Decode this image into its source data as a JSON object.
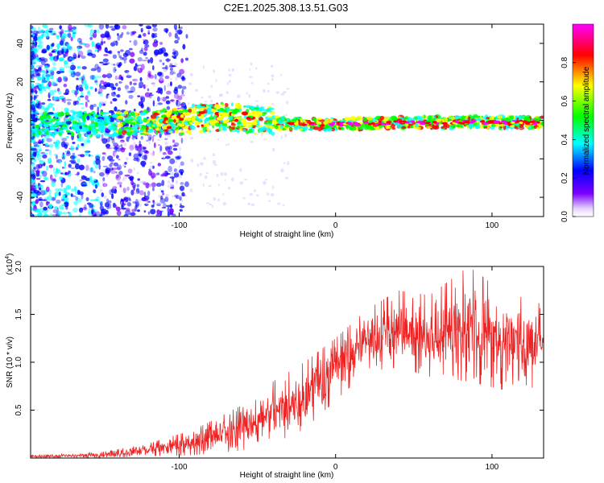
{
  "title": "C2E1.2025.308.13.51.G03",
  "chart_data": [
    {
      "type": "heatmap",
      "xlabel": "Height of straight line (km)",
      "ylabel": "Frequency (Hz)",
      "xlim": [
        -195,
        133
      ],
      "ylim": [
        -50,
        50
      ],
      "xticks": [
        -100,
        0,
        100
      ],
      "xtick_labels": [
        "-100",
        "0",
        "100"
      ],
      "yticks": [
        -40,
        -20,
        0,
        20,
        40
      ],
      "ytick_labels": [
        "-40",
        "-20",
        "0",
        "20",
        "40"
      ],
      "colorbar": {
        "label": "Normalized spectral amplitude",
        "range": [
          0,
          1
        ],
        "ticks": [
          0.0,
          0.2,
          0.4,
          0.6,
          0.8
        ],
        "tick_labels": [
          "0.0",
          "0.2",
          "0.4",
          "0.6",
          "0.8"
        ],
        "colormap": [
          "#ffffff",
          "#7b00ff",
          "#0000ff",
          "#00ffff",
          "#00ff00",
          "#ffff00",
          "#ff0000",
          "#ff00ff"
        ]
      },
      "ridge_center_hz": [
        {
          "x": -195,
          "y": -2
        },
        {
          "x": -140,
          "y": -2
        },
        {
          "x": -100,
          "y": 0
        },
        {
          "x": -70,
          "y": 2
        },
        {
          "x": -50,
          "y": 0
        },
        {
          "x": -30,
          "y": -2
        },
        {
          "x": 0,
          "y": -2
        },
        {
          "x": 50,
          "y": -1
        },
        {
          "x": 100,
          "y": -1
        },
        {
          "x": 133,
          "y": -1
        }
      ]
    },
    {
      "type": "line",
      "color": "#ee2222",
      "xlabel": "Height of straight line (km)",
      "ylabel": "SNR (10 * v/v)",
      "y_multiplier": "(x10",
      "y_multiplier_exp": "4",
      "y_multiplier_close": ")",
      "xlim": [
        -195,
        133
      ],
      "ylim": [
        0,
        2.0
      ],
      "xticks": [
        -100,
        0,
        100
      ],
      "xtick_labels": [
        "-100",
        "0",
        "100"
      ],
      "yticks": [
        0.5,
        1.0,
        1.5,
        2.0
      ],
      "ytick_labels": [
        "0.5",
        "1.0",
        "1.5",
        "2.0"
      ],
      "trend_envelope": [
        {
          "x": -195,
          "low": 0.0,
          "high": 0.03
        },
        {
          "x": -150,
          "low": 0.0,
          "high": 0.06
        },
        {
          "x": -120,
          "low": 0.02,
          "high": 0.15
        },
        {
          "x": -90,
          "low": 0.03,
          "high": 0.3
        },
        {
          "x": -60,
          "low": 0.08,
          "high": 0.55
        },
        {
          "x": -40,
          "low": 0.15,
          "high": 0.8
        },
        {
          "x": -20,
          "low": 0.3,
          "high": 1.0
        },
        {
          "x": 0,
          "low": 0.6,
          "high": 1.25
        },
        {
          "x": 20,
          "low": 0.9,
          "high": 1.55
        },
        {
          "x": 40,
          "low": 0.95,
          "high": 1.75
        },
        {
          "x": 60,
          "low": 0.85,
          "high": 1.7
        },
        {
          "x": 85,
          "low": 0.8,
          "high": 2.0
        },
        {
          "x": 110,
          "low": 0.7,
          "high": 1.7
        },
        {
          "x": 133,
          "low": 0.75,
          "high": 1.65
        }
      ]
    }
  ]
}
